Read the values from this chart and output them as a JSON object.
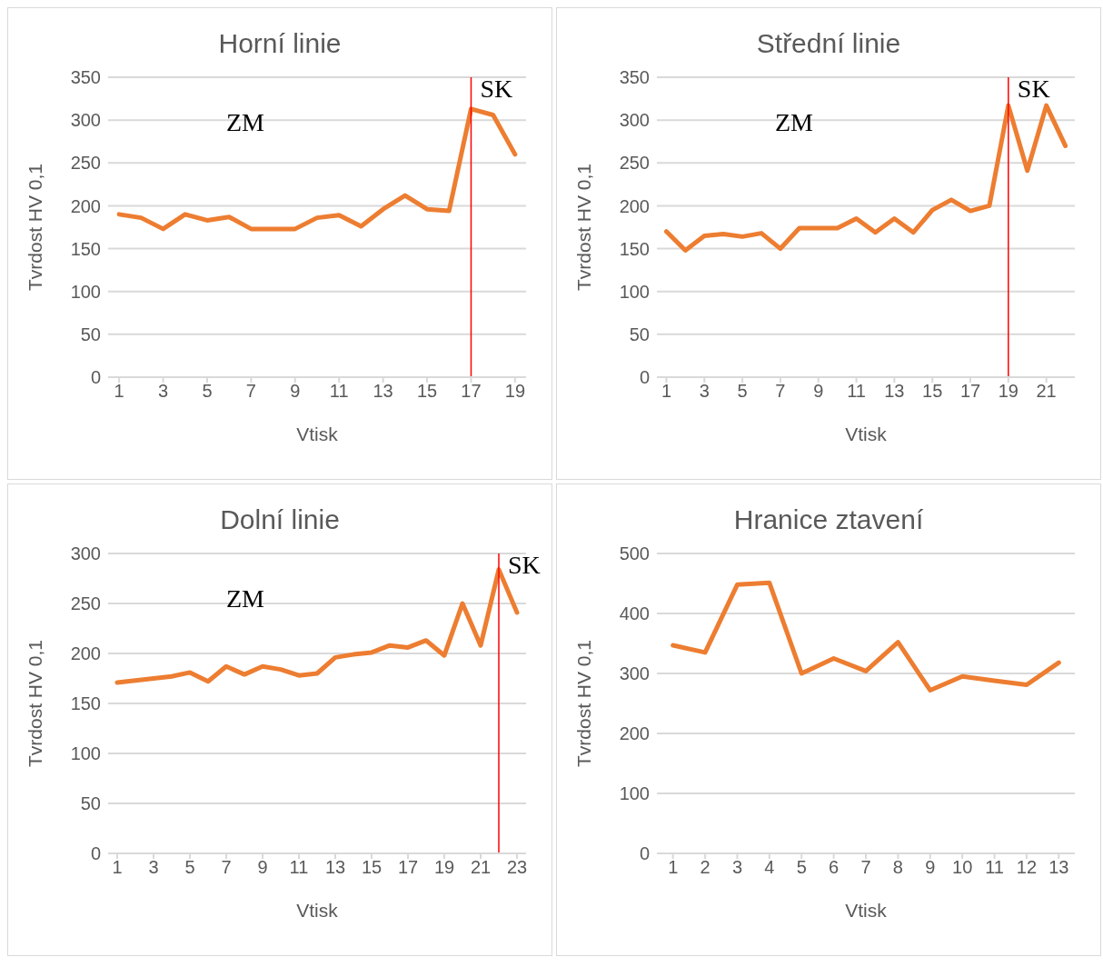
{
  "chart_data": [
    {
      "type": "line",
      "title": "Horní linie",
      "xlabel": "Vtisk",
      "ylabel": "Tvrdost HV 0,1",
      "x": [
        1,
        2,
        3,
        4,
        5,
        6,
        7,
        8,
        9,
        10,
        11,
        12,
        13,
        14,
        15,
        16,
        17,
        18,
        19
      ],
      "xlim": [
        0.5,
        19.5
      ],
      "xticks": [
        1,
        3,
        5,
        7,
        9,
        11,
        13,
        15,
        17,
        19
      ],
      "series": [
        {
          "color": "#ed7d31",
          "values": [
            190,
            186,
            173,
            190,
            183,
            187,
            173,
            173,
            173,
            186,
            189,
            176,
            196,
            212,
            196,
            194,
            313,
            306,
            260
          ]
        }
      ],
      "ylim": [
        0,
        350
      ],
      "yticks": [
        0,
        50,
        100,
        150,
        200,
        250,
        300,
        350
      ],
      "grid": "y",
      "marker": "none",
      "ref_lines": [
        {
          "axis": "x",
          "value": 17,
          "label": "SK",
          "color": "#ff0000"
        }
      ],
      "annotations": [
        "ZM"
      ]
    },
    {
      "type": "line",
      "title": "Střední linie",
      "xlabel": "Vtisk",
      "ylabel": "Tvrdost HV 0,1",
      "x": [
        1,
        2,
        3,
        4,
        5,
        6,
        7,
        8,
        9,
        10,
        11,
        12,
        13,
        14,
        15,
        16,
        17,
        18,
        19,
        20,
        21,
        22
      ],
      "xlim": [
        0.5,
        22.5
      ],
      "xticks": [
        1,
        3,
        5,
        7,
        9,
        11,
        13,
        15,
        17,
        19,
        21
      ],
      "series": [
        {
          "color": "#ed7d31",
          "values": [
            170,
            148,
            165,
            167,
            164,
            168,
            150,
            174,
            174,
            174,
            185,
            169,
            185,
            169,
            195,
            207,
            194,
            200,
            317,
            241,
            317,
            270
          ]
        }
      ],
      "ylim": [
        0,
        350
      ],
      "yticks": [
        0,
        50,
        100,
        150,
        200,
        250,
        300,
        350
      ],
      "grid": "y",
      "marker": "none",
      "ref_lines": [
        {
          "axis": "x",
          "value": 19,
          "label": "SK",
          "color": "#ff0000"
        }
      ],
      "annotations": [
        "ZM"
      ]
    },
    {
      "type": "line",
      "title": "Dolní linie",
      "xlabel": "Vtisk",
      "ylabel": "Tvrdost HV 0,1",
      "x": [
        1,
        2,
        3,
        4,
        5,
        6,
        7,
        8,
        9,
        10,
        11,
        12,
        13,
        14,
        15,
        16,
        17,
        18,
        19,
        20,
        21,
        22,
        23
      ],
      "xlim": [
        0.5,
        23.5
      ],
      "xticks": [
        1,
        3,
        5,
        7,
        9,
        11,
        13,
        15,
        17,
        19,
        21,
        23
      ],
      "series": [
        {
          "color": "#ed7d31",
          "values": [
            171,
            173,
            175,
            177,
            181,
            172,
            187,
            179,
            187,
            184,
            178,
            180,
            196,
            199,
            201,
            208,
            206,
            213,
            198,
            250,
            208,
            284,
            241
          ]
        }
      ],
      "ylim": [
        0,
        300
      ],
      "yticks": [
        0,
        50,
        100,
        150,
        200,
        250,
        300
      ],
      "grid": "y",
      "marker": "none",
      "ref_lines": [
        {
          "axis": "x",
          "value": 22,
          "label": "SK",
          "color": "#ff0000"
        }
      ],
      "annotations": [
        "ZM"
      ]
    },
    {
      "type": "line",
      "title": "Hranice ztavení",
      "xlabel": "Vtisk",
      "ylabel": "Tvrdost HV 0,1",
      "x": [
        1,
        2,
        3,
        4,
        5,
        6,
        7,
        8,
        9,
        10,
        11,
        12,
        13
      ],
      "xlim": [
        0.5,
        13.5
      ],
      "xticks": [
        1,
        2,
        3,
        4,
        5,
        6,
        7,
        8,
        9,
        10,
        11,
        12,
        13
      ],
      "series": [
        {
          "color": "#ed7d31",
          "values": [
            347,
            335,
            448,
            451,
            300,
            325,
            304,
            352,
            272,
            295,
            288,
            281,
            318
          ]
        }
      ],
      "ylim": [
        0,
        500
      ],
      "yticks": [
        0,
        100,
        200,
        300,
        400,
        500
      ],
      "grid": "y",
      "marker": "none"
    }
  ]
}
